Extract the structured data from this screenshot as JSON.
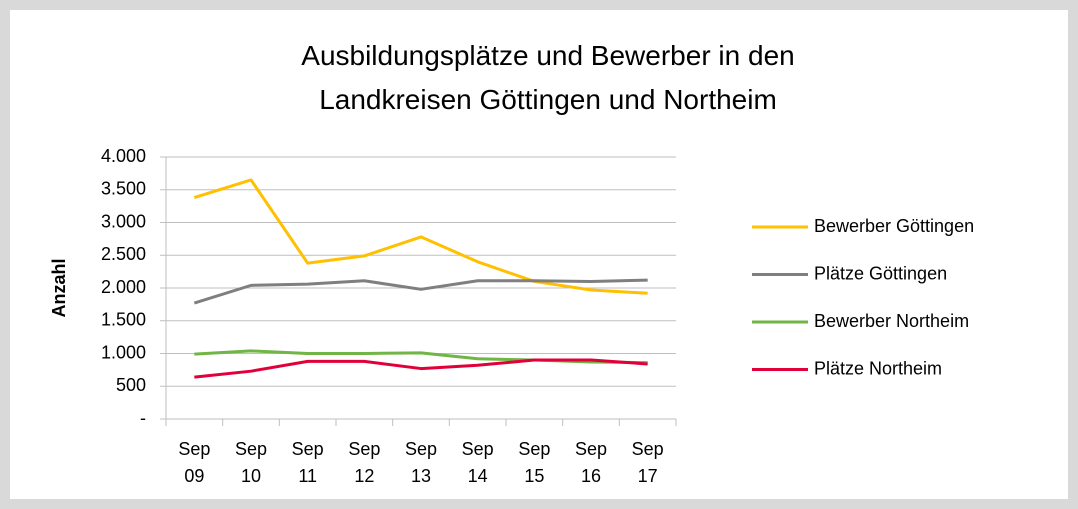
{
  "chart_data": {
    "type": "line",
    "title": "Ausbildungsplätze und Bewerber in den Landkreisen Göttingen und Northeim",
    "y_label": "Anzahl",
    "categories": [
      "Sep 09",
      "Sep 10",
      "Sep 11",
      "Sep 12",
      "Sep 13",
      "Sep 14",
      "Sep 15",
      "Sep 16",
      "Sep 17"
    ],
    "series": [
      {
        "name": "Bewerber Göttingen",
        "color": "#ffc000",
        "values": [
          3380,
          3650,
          2380,
          2490,
          2780,
          2400,
          2100,
          1970,
          1920
        ]
      },
      {
        "name": "Plätze Göttingen",
        "color": "#7f7f7f",
        "values": [
          1770,
          2040,
          2060,
          2110,
          1980,
          2110,
          2110,
          2100,
          2120
        ]
      },
      {
        "name": "Bewerber Northeim",
        "color": "#70b545",
        "values": [
          990,
          1040,
          1000,
          1000,
          1010,
          920,
          900,
          870,
          860
        ]
      },
      {
        "name": "Plätze Northeim",
        "color": "#e2003b",
        "values": [
          640,
          730,
          880,
          880,
          770,
          820,
          900,
          900,
          840
        ]
      }
    ],
    "ylim": [
      0,
      4000
    ],
    "yticks": [
      {
        "value": 0,
        "label": "-"
      },
      500,
      {
        "value": 1000,
        "label": "1.000"
      },
      {
        "value": 1500,
        "label": "1.500"
      },
      {
        "value": 2000,
        "label": "2.000"
      },
      {
        "value": 2500,
        "label": "2.500"
      },
      {
        "value": 3000,
        "label": "3.000"
      },
      {
        "value": 3500,
        "label": "3.500"
      },
      {
        "value": 4000,
        "label": "4.000"
      }
    ],
    "grid": true,
    "legend": "right"
  }
}
